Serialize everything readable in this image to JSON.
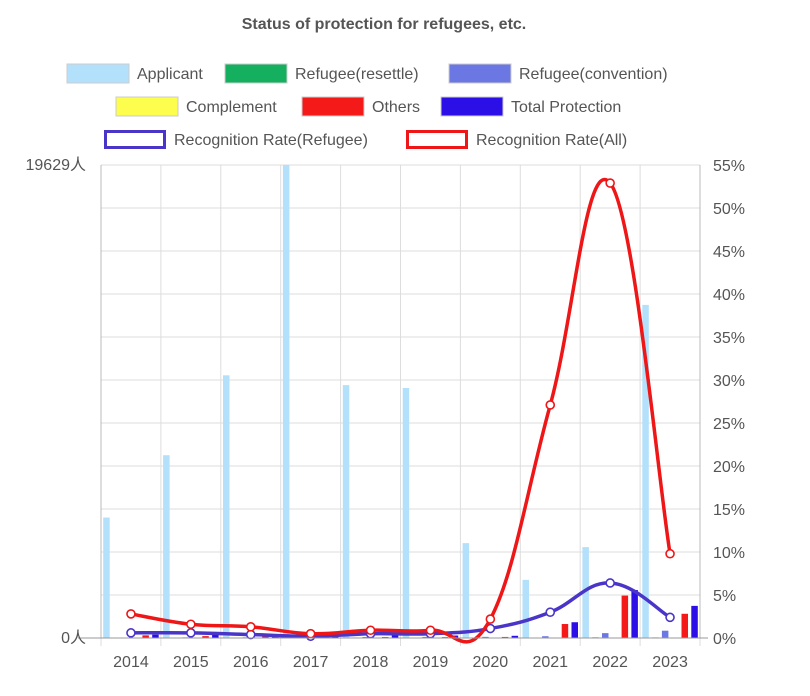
{
  "chart_data": {
    "type": "bar",
    "title": "Status of protection for refugees, etc.",
    "categories": [
      "2014",
      "2015",
      "2016",
      "2017",
      "2018",
      "2019",
      "2020",
      "2021",
      "2022",
      "2023"
    ],
    "y_left": {
      "max_label": "19629人",
      "min_label": "0人",
      "range": [
        0,
        19629
      ]
    },
    "y_right": {
      "ticks": [
        "0%",
        "5%",
        "10%",
        "15%",
        "20%",
        "25%",
        "30%",
        "35%",
        "40%",
        "45%",
        "50%",
        "55%"
      ],
      "range": [
        0,
        55
      ]
    },
    "legend_position": "top",
    "grid": true,
    "series": [
      {
        "name": "Applicant",
        "kind": "bar",
        "color": "#b3e0fb",
        "values": [
          5000,
          7586,
          10901,
          19629,
          10493,
          10375,
          3936,
          2413,
          3772,
          13823
        ]
      },
      {
        "name": "Refugee(resettle)",
        "kind": "bar",
        "color": "#14b060",
        "values": [
          18,
          19,
          18,
          29,
          22,
          20,
          0,
          0,
          29,
          25
        ]
      },
      {
        "name": "Refugee(convention)",
        "kind": "bar",
        "color": "#6b78e3",
        "values": [
          11,
          27,
          28,
          20,
          42,
          44,
          47,
          74,
          202,
          303
        ]
      },
      {
        "name": "Complement",
        "kind": "bar",
        "color": "#fdfd4d",
        "values": [
          0,
          0,
          0,
          0,
          0,
          0,
          0,
          0,
          0,
          0
        ]
      },
      {
        "name": "Others",
        "kind": "bar",
        "color": "#f41a1a",
        "values": [
          110,
          79,
          97,
          45,
          40,
          37,
          44,
          580,
          1760,
          1005
        ]
      },
      {
        "name": "Total Protection",
        "kind": "bar",
        "color": "#2c0fe6",
        "values": [
          139,
          125,
          143,
          94,
          104,
          101,
          91,
          654,
          1991,
          1333
        ]
      },
      {
        "name": "Recognition Rate(Refugee)",
        "kind": "line",
        "color": "#4a35c9",
        "values": [
          0.6,
          0.6,
          0.4,
          0.2,
          0.5,
          0.5,
          1.1,
          3.0,
          6.4,
          2.4
        ]
      },
      {
        "name": "Recognition Rate(All)",
        "kind": "line",
        "color": "#ee1616",
        "values": [
          2.8,
          1.6,
          1.3,
          0.5,
          0.9,
          0.9,
          2.2,
          27.1,
          52.9,
          9.8
        ]
      }
    ]
  }
}
